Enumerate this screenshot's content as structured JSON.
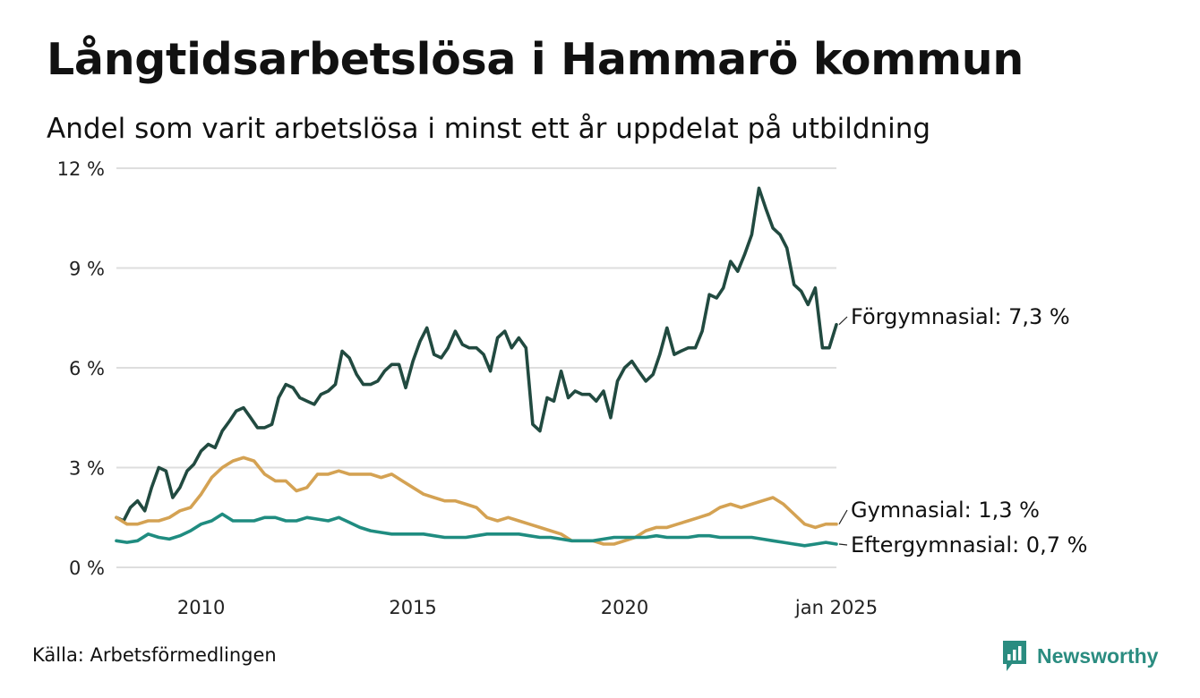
{
  "header": {
    "title": "Långtidsarbetslösa i Hammarö kommun",
    "subtitle": "Andel som varit arbetslösa i minst ett år uppdelat på utbildning"
  },
  "footer": {
    "source": "Källa: Arbetsförmedlingen",
    "brand": "Newsworthy",
    "brand_color": "#2a8c80"
  },
  "chart_data": {
    "type": "line",
    "title": "Långtidsarbetslösa i Hammarö kommun",
    "subtitle": "Andel som varit arbetslösa i minst ett år uppdelat på utbildning",
    "xlabel": "",
    "ylabel": "",
    "x_start": "2008-01",
    "x_end": "2025-01",
    "xlim": [
      2008.0,
      2025.0
    ],
    "ylim": [
      0,
      12
    ],
    "grid": true,
    "legend": "direct labels at line ends (right)",
    "y_ticks": [
      {
        "value": 0,
        "label": "0 %"
      },
      {
        "value": 3,
        "label": "3 %"
      },
      {
        "value": 6,
        "label": "6 %"
      },
      {
        "value": 9,
        "label": "9 %"
      },
      {
        "value": 12,
        "label": "12 %"
      }
    ],
    "x_ticks": [
      {
        "value": 2010.0,
        "label": "2010"
      },
      {
        "value": 2015.0,
        "label": "2015"
      },
      {
        "value": 2020.0,
        "label": "2020"
      },
      {
        "value": 2025.0,
        "label": "jan 2025"
      }
    ],
    "series": [
      {
        "name": "Förgymnasial",
        "end_label": "Förgymnasial: 7,3 %",
        "color": "#214a40",
        "points": [
          [
            2008.0,
            1.5
          ],
          [
            2008.17,
            1.4
          ],
          [
            2008.33,
            1.8
          ],
          [
            2008.5,
            2.0
          ],
          [
            2008.67,
            1.7
          ],
          [
            2008.83,
            2.4
          ],
          [
            2009.0,
            3.0
          ],
          [
            2009.17,
            2.9
          ],
          [
            2009.33,
            2.1
          ],
          [
            2009.5,
            2.4
          ],
          [
            2009.67,
            2.9
          ],
          [
            2009.83,
            3.1
          ],
          [
            2010.0,
            3.5
          ],
          [
            2010.17,
            3.7
          ],
          [
            2010.33,
            3.6
          ],
          [
            2010.5,
            4.1
          ],
          [
            2010.67,
            4.4
          ],
          [
            2010.83,
            4.7
          ],
          [
            2011.0,
            4.8
          ],
          [
            2011.17,
            4.5
          ],
          [
            2011.33,
            4.2
          ],
          [
            2011.5,
            4.2
          ],
          [
            2011.67,
            4.3
          ],
          [
            2011.83,
            5.1
          ],
          [
            2012.0,
            5.5
          ],
          [
            2012.17,
            5.4
          ],
          [
            2012.33,
            5.1
          ],
          [
            2012.5,
            5.0
          ],
          [
            2012.67,
            4.9
          ],
          [
            2012.83,
            5.2
          ],
          [
            2013.0,
            5.3
          ],
          [
            2013.17,
            5.5
          ],
          [
            2013.33,
            6.5
          ],
          [
            2013.5,
            6.3
          ],
          [
            2013.67,
            5.8
          ],
          [
            2013.83,
            5.5
          ],
          [
            2014.0,
            5.5
          ],
          [
            2014.17,
            5.6
          ],
          [
            2014.33,
            5.9
          ],
          [
            2014.5,
            6.1
          ],
          [
            2014.67,
            6.1
          ],
          [
            2014.83,
            5.4
          ],
          [
            2015.0,
            6.2
          ],
          [
            2015.17,
            6.8
          ],
          [
            2015.33,
            7.2
          ],
          [
            2015.5,
            6.4
          ],
          [
            2015.67,
            6.3
          ],
          [
            2015.83,
            6.6
          ],
          [
            2016.0,
            7.1
          ],
          [
            2016.17,
            6.7
          ],
          [
            2016.33,
            6.6
          ],
          [
            2016.5,
            6.6
          ],
          [
            2016.67,
            6.4
          ],
          [
            2016.83,
            5.9
          ],
          [
            2017.0,
            6.9
          ],
          [
            2017.17,
            7.1
          ],
          [
            2017.33,
            6.6
          ],
          [
            2017.5,
            6.9
          ],
          [
            2017.67,
            6.6
          ],
          [
            2017.83,
            4.3
          ],
          [
            2018.0,
            4.1
          ],
          [
            2018.17,
            5.1
          ],
          [
            2018.33,
            5.0
          ],
          [
            2018.5,
            5.9
          ],
          [
            2018.67,
            5.1
          ],
          [
            2018.83,
            5.3
          ],
          [
            2019.0,
            5.2
          ],
          [
            2019.17,
            5.2
          ],
          [
            2019.33,
            5.0
          ],
          [
            2019.5,
            5.3
          ],
          [
            2019.67,
            4.5
          ],
          [
            2019.83,
            5.6
          ],
          [
            2020.0,
            6.0
          ],
          [
            2020.17,
            6.2
          ],
          [
            2020.33,
            5.9
          ],
          [
            2020.5,
            5.6
          ],
          [
            2020.67,
            5.8
          ],
          [
            2020.83,
            6.4
          ],
          [
            2021.0,
            7.2
          ],
          [
            2021.17,
            6.4
          ],
          [
            2021.33,
            6.5
          ],
          [
            2021.5,
            6.6
          ],
          [
            2021.67,
            6.6
          ],
          [
            2021.83,
            7.1
          ],
          [
            2022.0,
            8.2
          ],
          [
            2022.17,
            8.1
          ],
          [
            2022.33,
            8.4
          ],
          [
            2022.5,
            9.2
          ],
          [
            2022.67,
            8.9
          ],
          [
            2022.83,
            9.4
          ],
          [
            2023.0,
            10.0
          ],
          [
            2023.17,
            11.4
          ],
          [
            2023.33,
            10.8
          ],
          [
            2023.5,
            10.2
          ],
          [
            2023.67,
            10.0
          ],
          [
            2023.83,
            9.6
          ],
          [
            2024.0,
            8.5
          ],
          [
            2024.17,
            8.3
          ],
          [
            2024.33,
            7.9
          ],
          [
            2024.5,
            8.4
          ],
          [
            2024.67,
            6.6
          ],
          [
            2024.83,
            6.6
          ],
          [
            2025.0,
            7.3
          ]
        ]
      },
      {
        "name": "Gymnasial",
        "end_label": "Gymnasial: 1,3 %",
        "color": "#d4a253",
        "points": [
          [
            2008.0,
            1.5
          ],
          [
            2008.25,
            1.3
          ],
          [
            2008.5,
            1.3
          ],
          [
            2008.75,
            1.4
          ],
          [
            2009.0,
            1.4
          ],
          [
            2009.25,
            1.5
          ],
          [
            2009.5,
            1.7
          ],
          [
            2009.75,
            1.8
          ],
          [
            2010.0,
            2.2
          ],
          [
            2010.25,
            2.7
          ],
          [
            2010.5,
            3.0
          ],
          [
            2010.75,
            3.2
          ],
          [
            2011.0,
            3.3
          ],
          [
            2011.25,
            3.2
          ],
          [
            2011.5,
            2.8
          ],
          [
            2011.75,
            2.6
          ],
          [
            2012.0,
            2.6
          ],
          [
            2012.25,
            2.3
          ],
          [
            2012.5,
            2.4
          ],
          [
            2012.75,
            2.8
          ],
          [
            2013.0,
            2.8
          ],
          [
            2013.25,
            2.9
          ],
          [
            2013.5,
            2.8
          ],
          [
            2013.75,
            2.8
          ],
          [
            2014.0,
            2.8
          ],
          [
            2014.25,
            2.7
          ],
          [
            2014.5,
            2.8
          ],
          [
            2014.75,
            2.6
          ],
          [
            2015.0,
            2.4
          ],
          [
            2015.25,
            2.2
          ],
          [
            2015.5,
            2.1
          ],
          [
            2015.75,
            2.0
          ],
          [
            2016.0,
            2.0
          ],
          [
            2016.25,
            1.9
          ],
          [
            2016.5,
            1.8
          ],
          [
            2016.75,
            1.5
          ],
          [
            2017.0,
            1.4
          ],
          [
            2017.25,
            1.5
          ],
          [
            2017.5,
            1.4
          ],
          [
            2017.75,
            1.3
          ],
          [
            2018.0,
            1.2
          ],
          [
            2018.25,
            1.1
          ],
          [
            2018.5,
            1.0
          ],
          [
            2018.75,
            0.8
          ],
          [
            2019.0,
            0.8
          ],
          [
            2019.25,
            0.8
          ],
          [
            2019.5,
            0.7
          ],
          [
            2019.75,
            0.7
          ],
          [
            2020.0,
            0.8
          ],
          [
            2020.25,
            0.9
          ],
          [
            2020.5,
            1.1
          ],
          [
            2020.75,
            1.2
          ],
          [
            2021.0,
            1.2
          ],
          [
            2021.25,
            1.3
          ],
          [
            2021.5,
            1.4
          ],
          [
            2021.75,
            1.5
          ],
          [
            2022.0,
            1.6
          ],
          [
            2022.25,
            1.8
          ],
          [
            2022.5,
            1.9
          ],
          [
            2022.75,
            1.8
          ],
          [
            2023.0,
            1.9
          ],
          [
            2023.25,
            2.0
          ],
          [
            2023.5,
            2.1
          ],
          [
            2023.75,
            1.9
          ],
          [
            2024.0,
            1.6
          ],
          [
            2024.25,
            1.3
          ],
          [
            2024.5,
            1.2
          ],
          [
            2024.75,
            1.3
          ],
          [
            2025.0,
            1.3
          ]
        ]
      },
      {
        "name": "Eftergymnasial",
        "end_label": "Eftergymnasial: 0,7 %",
        "color": "#1f8c80",
        "points": [
          [
            2008.0,
            0.8
          ],
          [
            2008.25,
            0.75
          ],
          [
            2008.5,
            0.8
          ],
          [
            2008.75,
            1.0
          ],
          [
            2009.0,
            0.9
          ],
          [
            2009.25,
            0.85
          ],
          [
            2009.5,
            0.95
          ],
          [
            2009.75,
            1.1
          ],
          [
            2010.0,
            1.3
          ],
          [
            2010.25,
            1.4
          ],
          [
            2010.5,
            1.6
          ],
          [
            2010.75,
            1.4
          ],
          [
            2011.0,
            1.4
          ],
          [
            2011.25,
            1.4
          ],
          [
            2011.5,
            1.5
          ],
          [
            2011.75,
            1.5
          ],
          [
            2012.0,
            1.4
          ],
          [
            2012.25,
            1.4
          ],
          [
            2012.5,
            1.5
          ],
          [
            2012.75,
            1.45
          ],
          [
            2013.0,
            1.4
          ],
          [
            2013.25,
            1.5
          ],
          [
            2013.5,
            1.35
          ],
          [
            2013.75,
            1.2
          ],
          [
            2014.0,
            1.1
          ],
          [
            2014.25,
            1.05
          ],
          [
            2014.5,
            1.0
          ],
          [
            2014.75,
            1.0
          ],
          [
            2015.0,
            1.0
          ],
          [
            2015.25,
            1.0
          ],
          [
            2015.5,
            0.95
          ],
          [
            2015.75,
            0.9
          ],
          [
            2016.0,
            0.9
          ],
          [
            2016.25,
            0.9
          ],
          [
            2016.5,
            0.95
          ],
          [
            2016.75,
            1.0
          ],
          [
            2017.0,
            1.0
          ],
          [
            2017.25,
            1.0
          ],
          [
            2017.5,
            1.0
          ],
          [
            2017.75,
            0.95
          ],
          [
            2018.0,
            0.9
          ],
          [
            2018.25,
            0.9
          ],
          [
            2018.5,
            0.85
          ],
          [
            2018.75,
            0.8
          ],
          [
            2019.0,
            0.8
          ],
          [
            2019.25,
            0.8
          ],
          [
            2019.5,
            0.85
          ],
          [
            2019.75,
            0.9
          ],
          [
            2020.0,
            0.9
          ],
          [
            2020.25,
            0.9
          ],
          [
            2020.5,
            0.9
          ],
          [
            2020.75,
            0.95
          ],
          [
            2021.0,
            0.9
          ],
          [
            2021.25,
            0.9
          ],
          [
            2021.5,
            0.9
          ],
          [
            2021.75,
            0.95
          ],
          [
            2022.0,
            0.95
          ],
          [
            2022.25,
            0.9
          ],
          [
            2022.5,
            0.9
          ],
          [
            2022.75,
            0.9
          ],
          [
            2023.0,
            0.9
          ],
          [
            2023.25,
            0.85
          ],
          [
            2023.5,
            0.8
          ],
          [
            2023.75,
            0.75
          ],
          [
            2024.0,
            0.7
          ],
          [
            2024.25,
            0.65
          ],
          [
            2024.5,
            0.7
          ],
          [
            2024.75,
            0.75
          ],
          [
            2025.0,
            0.7
          ]
        ]
      }
    ]
  }
}
